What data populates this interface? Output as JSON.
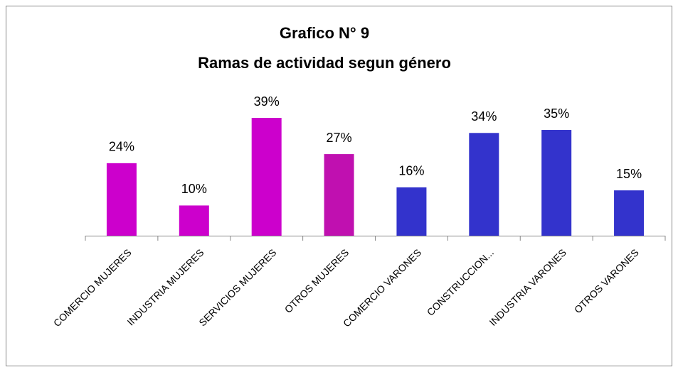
{
  "chart_data": {
    "type": "bar",
    "title": [
      "Grafico N° 9",
      "Ramas de actividad segun género"
    ],
    "categories": [
      "COMERCIO MUJERES",
      "INDUSTRIA MUJERES",
      "SERVICIOS MUJERES",
      "OTROS MUJERES",
      "COMERCIO VARONES",
      "CONSTRUCCION...",
      "INDUSTRIA VARONES",
      "OTROS VARONES"
    ],
    "values": [
      24,
      10,
      39,
      27,
      16,
      34,
      35,
      15
    ],
    "value_labels": [
      "24%",
      "10%",
      "39%",
      "27%",
      "16%",
      "34%",
      "35%",
      "15%"
    ],
    "colors": [
      "#cc00cc",
      "#cc00cc",
      "#cc00cc",
      "#c010b0",
      "#3333cc",
      "#3333cc",
      "#3333cc",
      "#3333cc"
    ]
  }
}
